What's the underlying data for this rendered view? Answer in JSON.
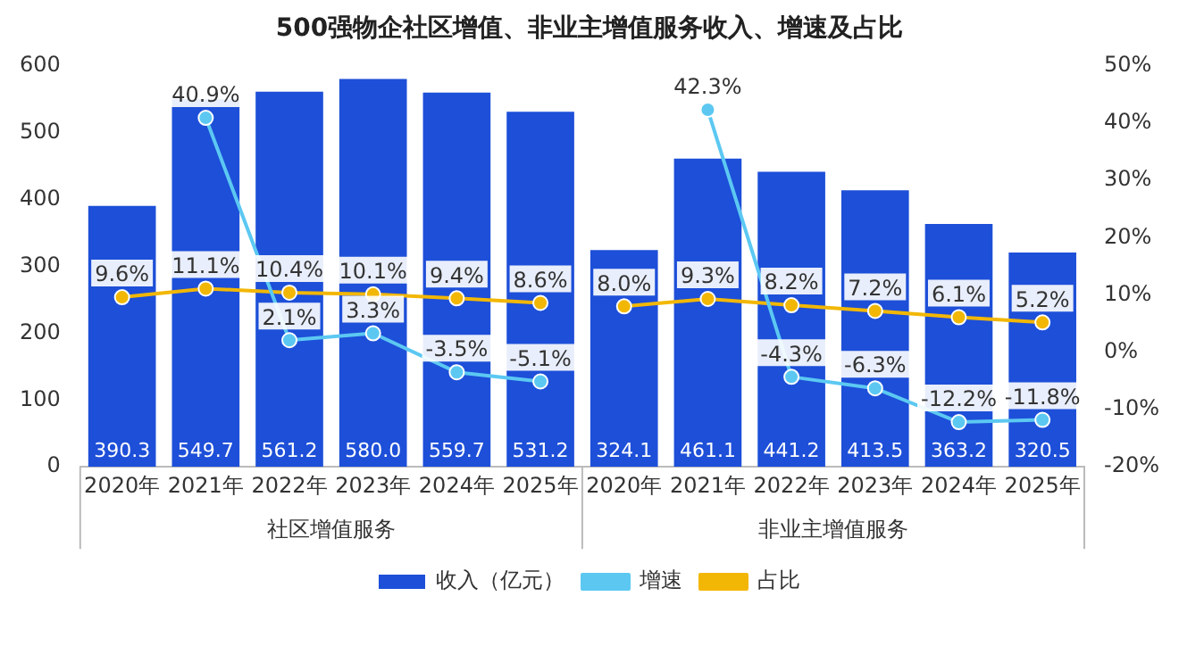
{
  "chart_data": {
    "type": "bar",
    "title": "500强物企社区增值、非业主增值服务收入、增速及占比",
    "categories": [
      "2020年",
      "2021年",
      "2022年",
      "2023年",
      "2024年",
      "2025年",
      "2020年",
      "2021年",
      "2022年",
      "2023年",
      "2024年",
      "2025年"
    ],
    "annotations": [
      "社区增值服务",
      "非业主增值服务"
    ],
    "series": [
      {
        "name": "收入（亿元）",
        "color": "#1d4fd8",
        "values": [
          390.3,
          549.7,
          561.2,
          580.0,
          559.7,
          531.2,
          324.1,
          461.1,
          441.2,
          413.5,
          363.2,
          320.5
        ],
        "value_labels": [
          "390.3",
          "549.7",
          "561.2",
          "580.0",
          "559.7",
          "531.2",
          "324.1",
          "461.1",
          "441.2",
          "413.5",
          "363.2",
          "320.5"
        ]
      },
      {
        "name": "增速",
        "type": "line",
        "axis": "y2",
        "color": "#5cc8f2",
        "values": [
          null,
          40.9,
          2.1,
          3.3,
          -3.5,
          -5.1,
          null,
          42.3,
          -4.3,
          -6.3,
          -12.2,
          -11.8
        ],
        "value_labels": [
          null,
          "40.9%",
          "2.1%",
          "3.3%",
          "-3.5%",
          "-5.1%",
          null,
          "42.3%",
          "-4.3%",
          "-6.3%",
          "-12.2%",
          "-11.8%"
        ]
      },
      {
        "name": "占比",
        "type": "line",
        "axis": "y2",
        "color": "#f2b705",
        "values": [
          9.6,
          11.1,
          10.4,
          10.1,
          9.4,
          8.6,
          8.0,
          9.3,
          8.2,
          7.2,
          6.1,
          5.2
        ],
        "value_labels": [
          "9.6%",
          "11.1%",
          "10.4%",
          "10.1%",
          "9.4%",
          "8.6%",
          "8.0%",
          "9.3%",
          "8.2%",
          "7.2%",
          "6.1%",
          "5.2%"
        ]
      }
    ],
    "ylim": [
      0,
      600
    ],
    "yticks": [
      0,
      100,
      200,
      300,
      400,
      500,
      600
    ],
    "y2lim": [
      -20,
      50
    ],
    "y2ticks": [
      {
        "value": -20,
        "label": "-20%"
      },
      {
        "value": -10,
        "label": "-10%"
      },
      {
        "value": 0,
        "label": "0%"
      },
      {
        "value": 10,
        "label": "10%"
      },
      {
        "value": 20,
        "label": "20%"
      },
      {
        "value": 30,
        "label": "30%"
      },
      {
        "value": 40,
        "label": "40%"
      },
      {
        "value": 50,
        "label": "50%"
      }
    ],
    "legend": "bottom",
    "marker": "circle",
    "grid": false
  }
}
